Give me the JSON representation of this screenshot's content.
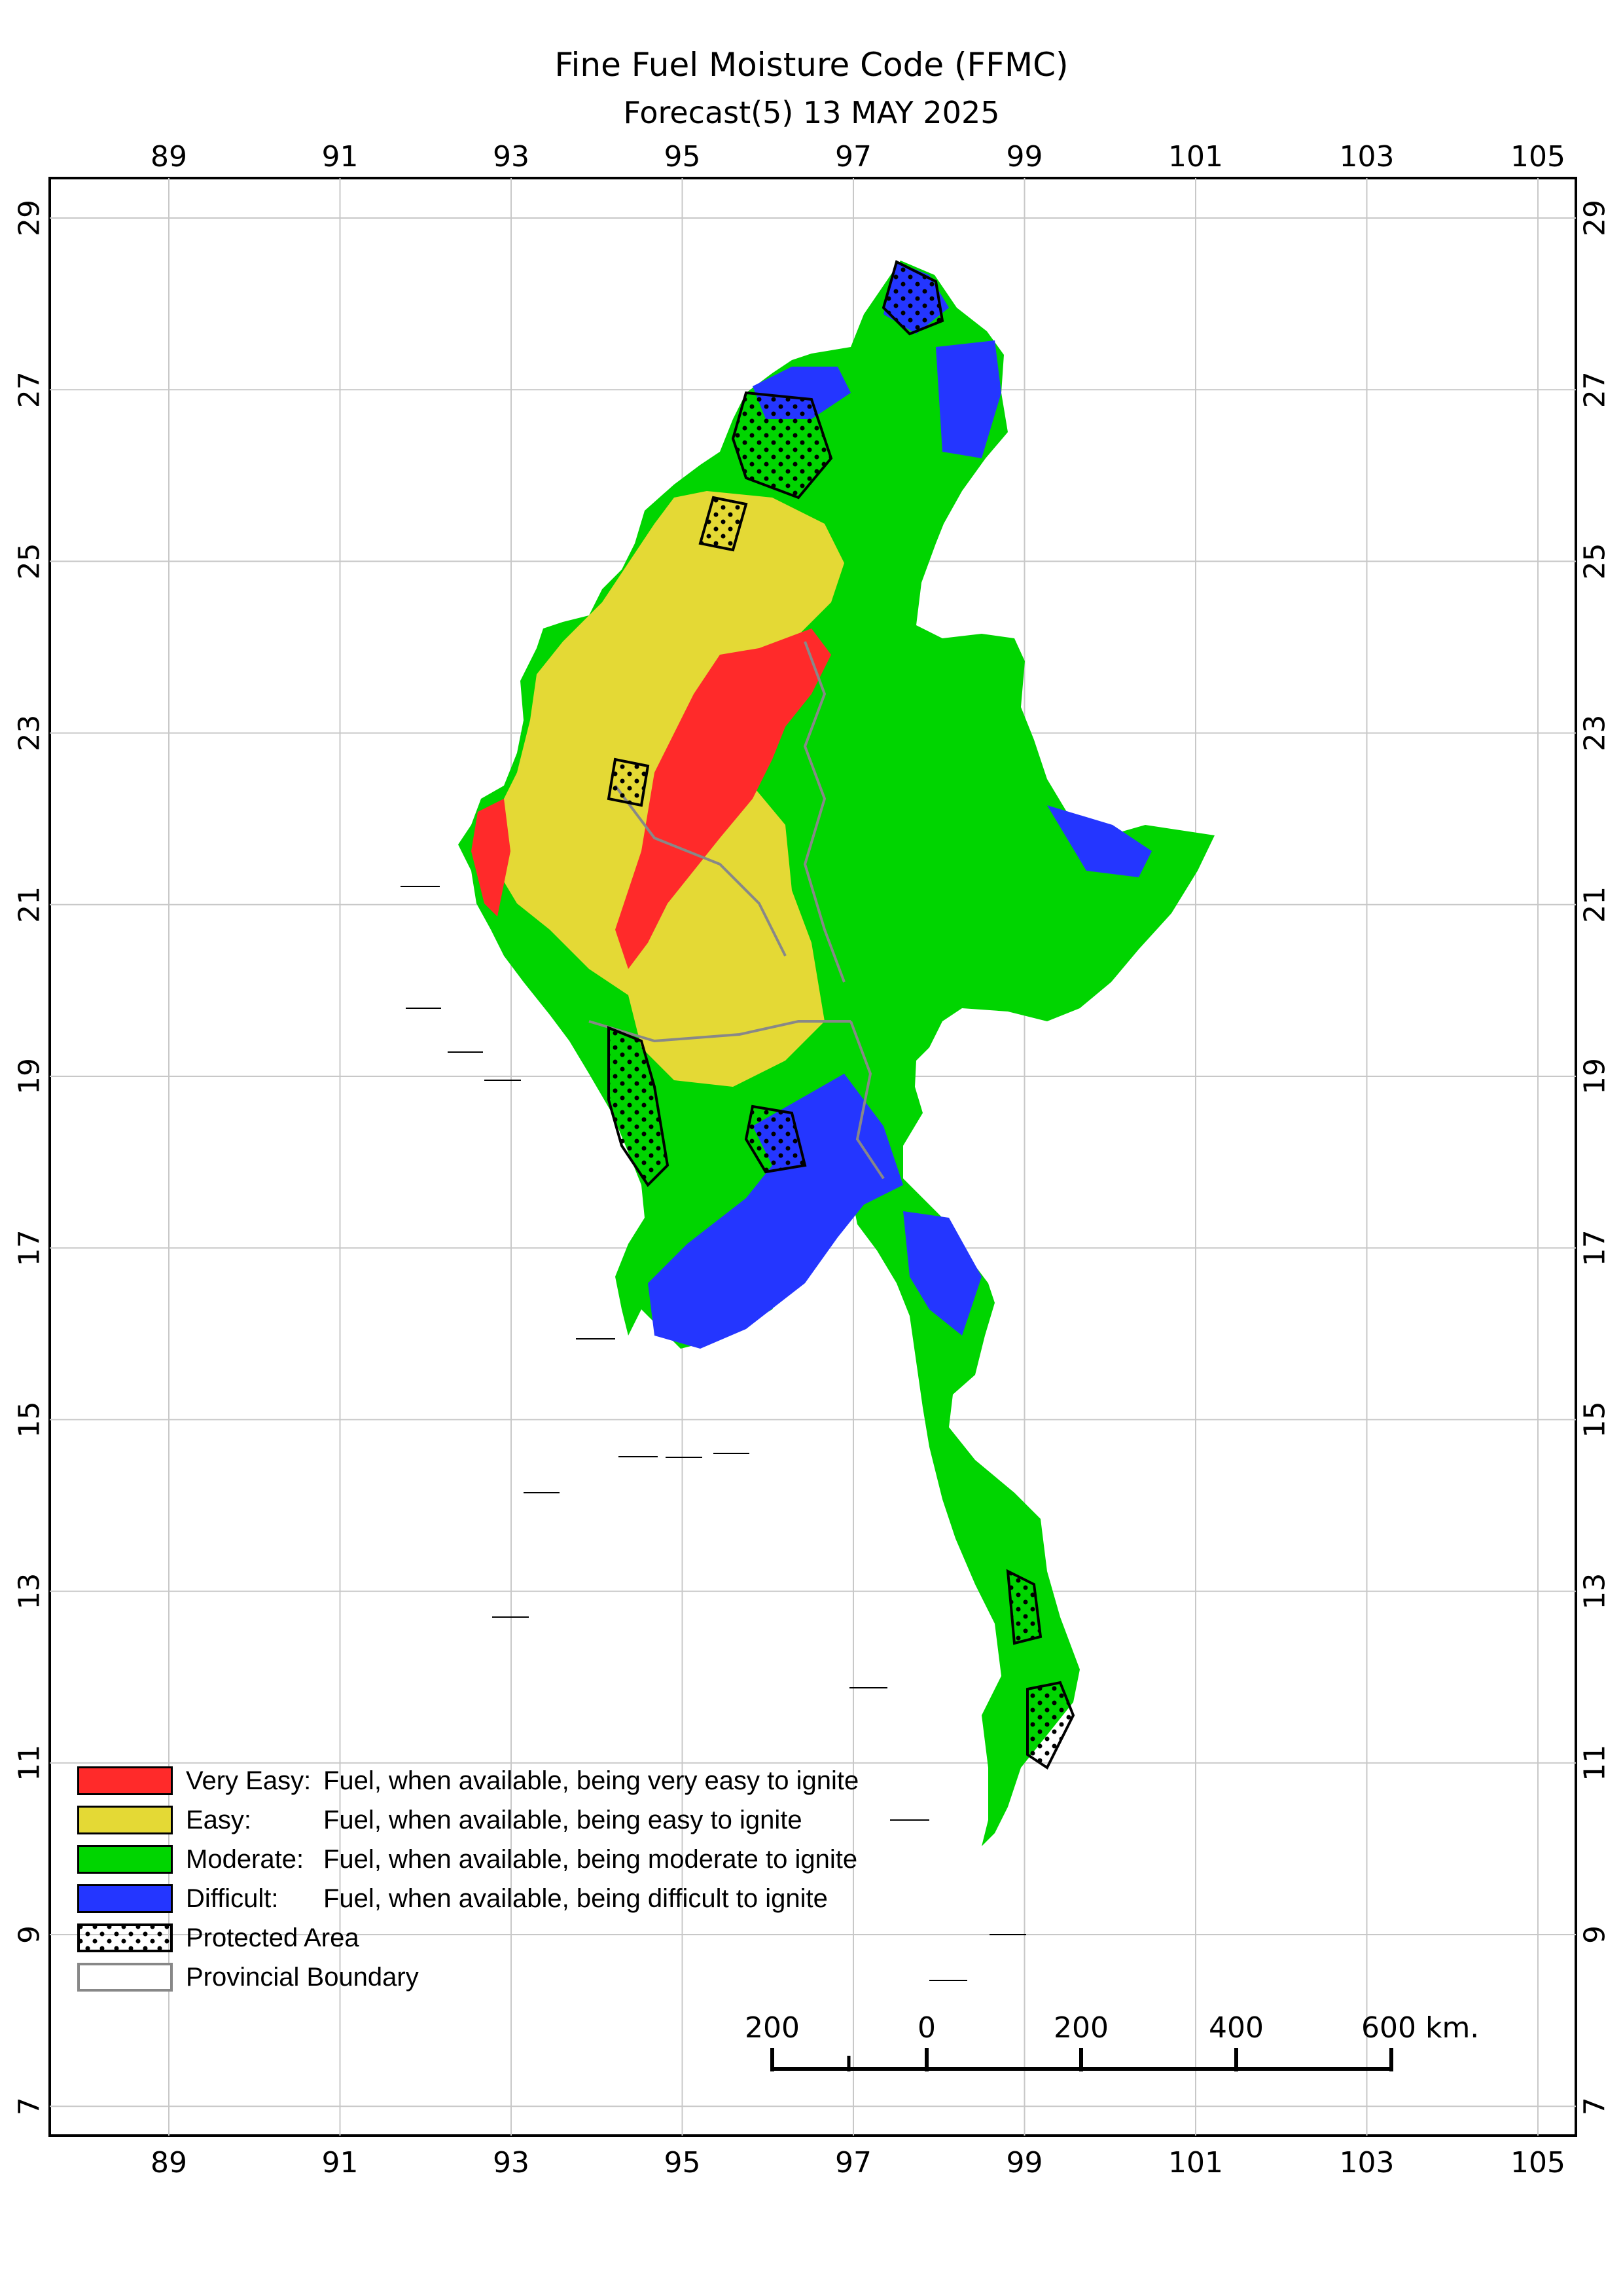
{
  "title": "Fine Fuel Moisture Code (FFMC)",
  "subtitle": "Forecast(5) 13 MAY 2025",
  "axes": {
    "lon_ticks": [
      "89",
      "91",
      "93",
      "95",
      "97",
      "99",
      "101",
      "103",
      "105"
    ],
    "lat_ticks": [
      "29",
      "27",
      "25",
      "23",
      "21",
      "19",
      "17",
      "15",
      "13",
      "11",
      "9",
      "7"
    ]
  },
  "colors": {
    "very_easy": "#ff2a2a",
    "easy": "#e4d935",
    "moderate": "#00d500",
    "difficult": "#2436ff",
    "boundary": "#888888"
  },
  "legend": {
    "very_easy": {
      "label": "Very Easy:",
      "desc": "Fuel, when available, being very easy to ignite"
    },
    "easy": {
      "label": "Easy:",
      "desc": "Fuel, when available, being easy to ignite"
    },
    "moderate": {
      "label": "Moderate:",
      "desc": "Fuel, when available, being moderate to ignite"
    },
    "difficult": {
      "label": "Difficult:",
      "desc": "Fuel, when available, being difficult to ignite"
    },
    "protected": {
      "label": "Protected Area"
    },
    "boundary": {
      "label": "Provincial Boundary"
    }
  },
  "scale_bar": {
    "labels": [
      "200",
      "0",
      "200",
      "400",
      "600 km."
    ]
  }
}
